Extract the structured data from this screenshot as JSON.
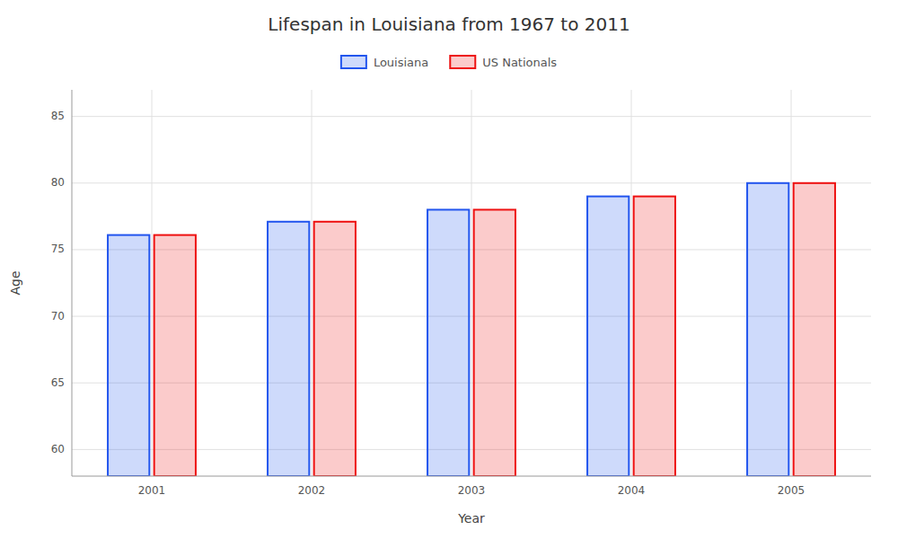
{
  "chart_data": {
    "type": "bar",
    "title": "Lifespan in Louisiana from 1967 to 2011",
    "x_label": "Year",
    "y_label": "Age",
    "categories": [
      "2001",
      "2002",
      "2003",
      "2004",
      "2005"
    ],
    "series": [
      {
        "name": "Louisiana",
        "color": "#2255ee",
        "values": [
          76.1,
          77.1,
          78.0,
          79.0,
          80.0
        ]
      },
      {
        "name": "US Nationals",
        "color": "#ee1111",
        "values": [
          76.1,
          77.1,
          78.0,
          79.0,
          80.0
        ]
      }
    ],
    "ylim": [
      58,
      87
    ],
    "yticks": [
      60,
      65,
      70,
      75,
      80,
      85
    ],
    "grid": true,
    "legend": "top"
  }
}
